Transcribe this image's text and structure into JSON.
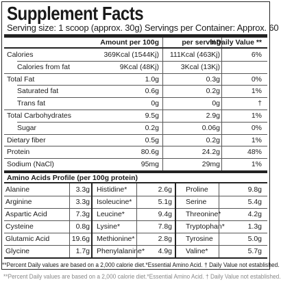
{
  "title": "Supplement Facts",
  "serving": "Serving size: 1 scoop (approx. 30g) Servings per Container: Approx. 60",
  "headers": {
    "per100": "Amount per 100g",
    "perserving": "per serving",
    "dv": "%Daily Value **"
  },
  "nutrients": [
    {
      "name": "Calories",
      "per100": "369Kcal (1544Kj)",
      "serving": "111Kcal (463Kj)",
      "dv": "6%"
    },
    {
      "name": "Calories from fat",
      "per100": "9Kcal (48Kj)",
      "serving": "3Kcal (13Kj)",
      "dv": ""
    },
    {
      "name": "Total Fat",
      "per100": "1.0g",
      "serving": "0.3g",
      "dv": "0%"
    },
    {
      "name": "Saturated fat",
      "per100": "0.6g",
      "serving": "0.2g",
      "dv": "1%"
    },
    {
      "name": "Trans fat",
      "per100": "0g",
      "serving": "0g",
      "dv": "†"
    },
    {
      "name": "Total Carbohydrates",
      "per100": "9.5g",
      "serving": "2.9g",
      "dv": "1%"
    },
    {
      "name": "Sugar",
      "per100": "0.2g",
      "serving": "0.06g",
      "dv": "0%"
    },
    {
      "name": "Dietary fiber",
      "per100": "0.5g",
      "serving": "0.2g",
      "dv": "1%"
    },
    {
      "name": "Protein",
      "per100": "80.6g",
      "serving": "24.2g",
      "dv": "48%"
    },
    {
      "name": "Sodium (NaCl)",
      "per100": "95mg",
      "serving": "29mg",
      "dv": "1%"
    }
  ],
  "amino_title": "Amino Acids Profile (per 100g protein)",
  "amino": [
    [
      {
        "name": "Alanine",
        "value": "3.3g"
      },
      {
        "name": "Histidine*",
        "value": "2.6g"
      },
      {
        "name": "Proline",
        "value": "9.8g"
      }
    ],
    [
      {
        "name": "Arginine",
        "value": "3.3g"
      },
      {
        "name": "Isoleucine*",
        "value": "5.1g"
      },
      {
        "name": "Serine",
        "value": "5.4g"
      }
    ],
    [
      {
        "name": "Aspartic Acid",
        "value": "7.3g"
      },
      {
        "name": "Leucine*",
        "value": "9.4g"
      },
      {
        "name": "Threonine*",
        "value": "4.2g"
      }
    ],
    [
      {
        "name": "Cysteine",
        "value": "0.8g"
      },
      {
        "name": "Lysine*",
        "value": "7.8g"
      },
      {
        "name": "Tryptophan*",
        "value": "1.3g"
      }
    ],
    [
      {
        "name": "Glutamic Acid",
        "value": "19.6g"
      },
      {
        "name": "Methionine*",
        "value": "2.8g"
      },
      {
        "name": "Tyrosine",
        "value": "5.0g"
      }
    ],
    [
      {
        "name": "Glycine",
        "value": "1.7g"
      },
      {
        "name": "Phenylalanine*",
        "value": "4.9g"
      },
      {
        "name": "Valine*",
        "value": "5.7g"
      }
    ]
  ],
  "footer": "**Percent Daily values are based on a 2,000 calorie diet.*Essential Amino Acid. † Daily Value not established.",
  "footer_ghost": "**Percent Daily values are based on a 2,000 calorie diet.*Essential Amino Acid. † Daily Value not established."
}
